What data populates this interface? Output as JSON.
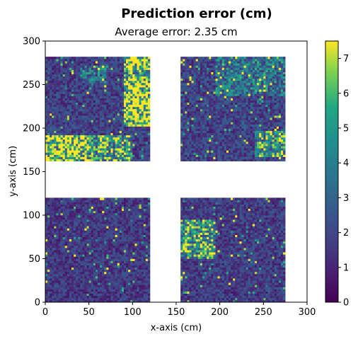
{
  "chart_data": {
    "type": "heatmap",
    "title": "Prediction error (cm)",
    "subtitle": "Average error: 2.35 cm",
    "xlabel": "x-axis (cm)",
    "ylabel": "y-axis (cm)",
    "xlim": [
      0,
      300
    ],
    "ylim": [
      0,
      300
    ],
    "x_ticks": [
      0,
      50,
      100,
      150,
      200,
      250,
      300
    ],
    "y_ticks": [
      0,
      50,
      100,
      150,
      200,
      250,
      300
    ],
    "colormap": "viridis",
    "colorbar": {
      "min": 0,
      "max": 7.5,
      "ticks": [
        0,
        1,
        2,
        3,
        4,
        5,
        6,
        7
      ]
    },
    "average_error_cm": 2.35,
    "regions": [
      {
        "name": "top-left",
        "x": [
          0,
          120
        ],
        "y": [
          162,
          282
        ],
        "base_error": 1.8
      },
      {
        "name": "top-right",
        "x": [
          155,
          275
        ],
        "y": [
          162,
          282
        ],
        "base_error": 1.9
      },
      {
        "name": "bottom-left",
        "x": [
          0,
          120
        ],
        "y": [
          0,
          120
        ],
        "base_error": 1.6
      },
      {
        "name": "bottom-right",
        "x": [
          155,
          275
        ],
        "y": [
          0,
          120
        ],
        "base_error": 1.7
      }
    ],
    "hotspots": [
      {
        "x": [
          90,
          120
        ],
        "y": [
          200,
          282
        ],
        "error": 6.5
      },
      {
        "x": [
          0,
          60
        ],
        "y": [
          162,
          192
        ],
        "error": 6.8
      },
      {
        "x": [
          50,
          100
        ],
        "y": [
          162,
          192
        ],
        "error": 4.8
      },
      {
        "x": [
          155,
          195
        ],
        "y": [
          50,
          95
        ],
        "error": 5.0
      },
      {
        "x": [
          195,
          275
        ],
        "y": [
          235,
          282
        ],
        "error": 3.6
      },
      {
        "x": [
          240,
          275
        ],
        "y": [
          165,
          195
        ],
        "error": 4.6
      },
      {
        "x": [
          40,
          70
        ],
        "y": [
          250,
          270
        ],
        "error": 3.5
      }
    ]
  }
}
